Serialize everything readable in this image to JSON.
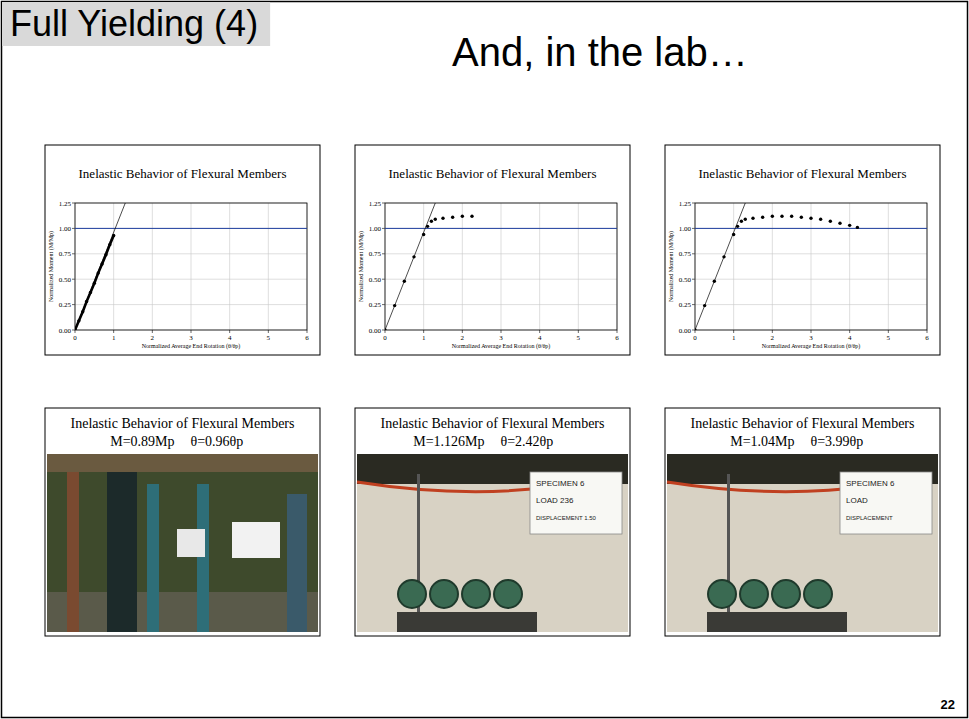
{
  "slide": {
    "heading": "Full Yielding (4)",
    "subtitle": "And, in the lab…",
    "page_number": "22"
  },
  "chart_data": [
    {
      "type": "scatter",
      "title": "Inelastic Behavior of Flexural Members",
      "xlabel": "Normalized Average End Rotation (θ/θp)",
      "ylabel": "Normalized Moment (M/Mp)",
      "x": [
        0,
        0.1,
        0.2,
        0.3,
        0.4,
        0.5,
        0.6,
        0.7,
        0.8,
        0.9,
        1.0
      ],
      "values": [
        0,
        0.09,
        0.18,
        0.28,
        0.37,
        0.46,
        0.56,
        0.65,
        0.74,
        0.84,
        0.93
      ],
      "color": "#000000",
      "marker": "circle",
      "line_style": "solid",
      "xlim": [
        0,
        6
      ],
      "ylim": [
        0,
        1.25
      ],
      "xticks": [
        0,
        1,
        2,
        3,
        4,
        5,
        6
      ],
      "yticks": [
        {
          "value": 0,
          "label": "0.00"
        },
        {
          "value": 0.25,
          "label": "0.25"
        },
        {
          "value": 0.5,
          "label": "0.50"
        },
        {
          "value": 0.75,
          "label": "0.75"
        },
        {
          "value": 1,
          "label": "1.00"
        },
        {
          "value": 1.25,
          "label": "1.25"
        }
      ],
      "grid": true,
      "reference_y": 1,
      "elastic_line": {
        "x": [
          0,
          1.3
        ],
        "y": [
          0,
          1.25
        ]
      }
    },
    {
      "type": "scatter",
      "title": "Inelastic Behavior of Flexural Members",
      "xlabel": "Normalized Average End Rotation (θ/θp)",
      "ylabel": "Normalized Moment (M/Mp)",
      "x": [
        0,
        0.25,
        0.5,
        0.75,
        1.0,
        1.1,
        1.2,
        1.3,
        1.5,
        1.75,
        2.0,
        2.25
      ],
      "values": [
        0,
        0.24,
        0.48,
        0.72,
        0.94,
        1.02,
        1.07,
        1.09,
        1.1,
        1.11,
        1.12,
        1.12
      ],
      "color": "#000000",
      "marker": "circle",
      "line_style": "none",
      "xlim": [
        0,
        6
      ],
      "ylim": [
        0,
        1.25
      ],
      "xticks": [
        0,
        1,
        2,
        3,
        4,
        5,
        6
      ],
      "yticks": [
        {
          "value": 0,
          "label": "0.00"
        },
        {
          "value": 0.25,
          "label": "0.25"
        },
        {
          "value": 0.5,
          "label": "0.50"
        },
        {
          "value": 0.75,
          "label": "0.75"
        },
        {
          "value": 1,
          "label": "1.00"
        },
        {
          "value": 1.25,
          "label": "1.25"
        }
      ],
      "grid": true,
      "reference_y": 1,
      "elastic_line": {
        "x": [
          0,
          1.3
        ],
        "y": [
          0,
          1.25
        ]
      }
    },
    {
      "type": "scatter",
      "title": "Inelastic Behavior of Flexural Members",
      "xlabel": "Normalized Average End Rotation (θ/θp)",
      "ylabel": "Normalized Moment (M/Mp)",
      "x": [
        0,
        0.25,
        0.5,
        0.75,
        1.0,
        1.1,
        1.2,
        1.3,
        1.5,
        1.75,
        2.0,
        2.25,
        2.5,
        2.75,
        3.0,
        3.25,
        3.5,
        3.75,
        4.0,
        4.2
      ],
      "values": [
        0,
        0.24,
        0.48,
        0.72,
        0.94,
        1.02,
        1.07,
        1.09,
        1.1,
        1.11,
        1.12,
        1.12,
        1.12,
        1.11,
        1.1,
        1.09,
        1.07,
        1.05,
        1.03,
        1.01
      ],
      "color": "#000000",
      "marker": "circle",
      "line_style": "none",
      "xlim": [
        0,
        6
      ],
      "ylim": [
        0,
        1.25
      ],
      "xticks": [
        0,
        1,
        2,
        3,
        4,
        5,
        6
      ],
      "yticks": [
        {
          "value": 0,
          "label": "0.00"
        },
        {
          "value": 0.25,
          "label": "0.25"
        },
        {
          "value": 0.5,
          "label": "0.50"
        },
        {
          "value": 0.75,
          "label": "0.75"
        },
        {
          "value": 1,
          "label": "1.00"
        },
        {
          "value": 1.25,
          "label": "1.25"
        }
      ],
      "grid": true,
      "reference_y": 1,
      "elastic_line": {
        "x": [
          0,
          1.3
        ],
        "y": [
          0,
          1.25
        ]
      }
    }
  ],
  "photos": [
    {
      "title": "Inelastic Behavior of Flexural Members",
      "moment": "M=0.89Mp",
      "rotation": "θ=0.96θp",
      "sign": []
    },
    {
      "title": "Inelastic Behavior of Flexural Members",
      "moment": "M=1.126Mp",
      "rotation": "θ=2.42θp",
      "sign": [
        "SPECIMEN 6",
        "LOAD  236",
        "DISPLACEMENT 1.50"
      ]
    },
    {
      "title": "Inelastic Behavior of Flexural Members",
      "moment": "M=1.04Mp",
      "rotation": "θ=3.99θp",
      "sign": [
        "SPECIMEN 6",
        "LOAD",
        "DISPLACEMENT"
      ]
    }
  ]
}
